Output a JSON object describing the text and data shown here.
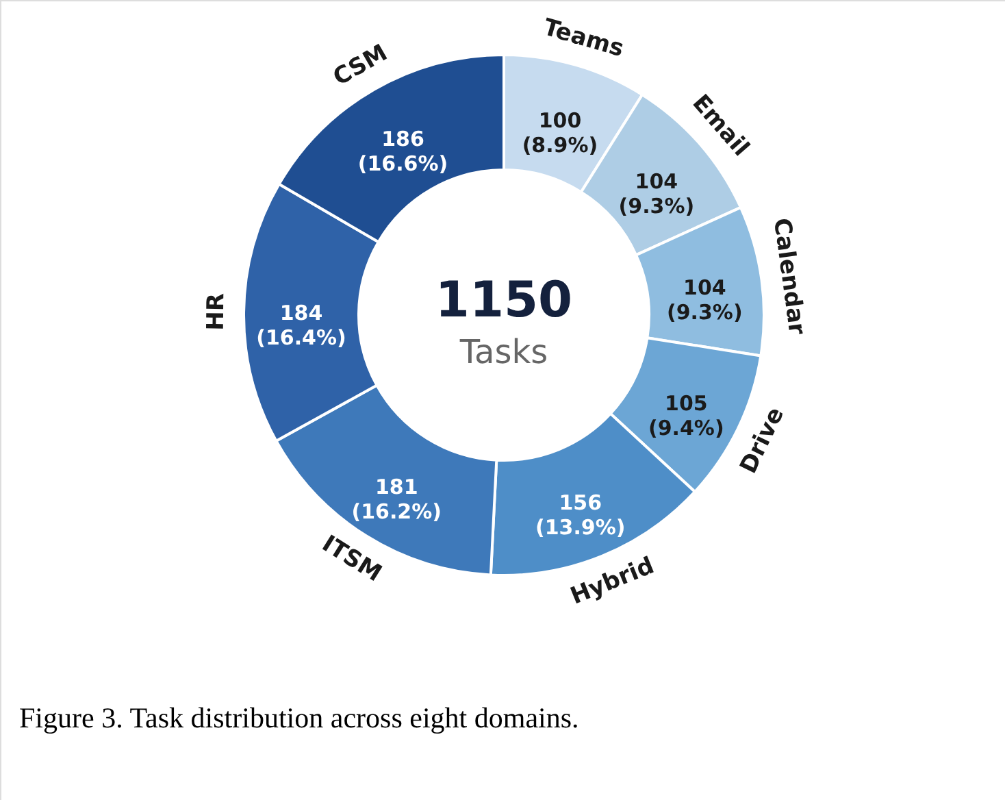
{
  "chart_data": {
    "type": "donut",
    "categories": [
      "Teams",
      "Email",
      "Calendar",
      "Drive",
      "Hybrid",
      "ITSM",
      "HR",
      "CSM"
    ],
    "values": [
      100,
      104,
      104,
      105,
      156,
      181,
      184,
      186
    ],
    "colors": [
      "#c6dbef",
      "#aecde5",
      "#8fbde0",
      "#6ca6d5",
      "#4e8ec8",
      "#3e79ba",
      "#2f62a8",
      "#1f4e92"
    ],
    "value_labels": [
      "100 (8.9%)",
      "104 (9.3%)",
      "104 (9.3%)",
      "105 (9.4%)",
      "156 (13.9%)",
      "181 (16.2%)",
      "184 (16.4%)",
      "186 (16.6%)"
    ],
    "annotations": [
      "1150",
      "Tasks",
      "Figure 3. Task distribution across eight domains."
    ]
  }
}
